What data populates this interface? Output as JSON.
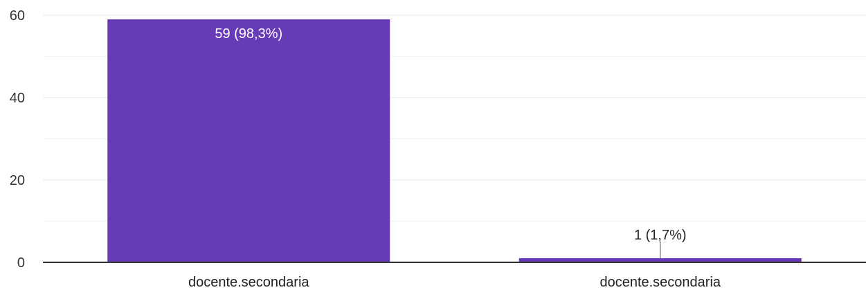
{
  "chart_data": {
    "type": "bar",
    "categories": [
      "docente.secondaria",
      "docente.secondaria"
    ],
    "values": [
      59,
      1
    ],
    "data_labels": [
      "59 (98,3%)",
      "1 (1,7%)"
    ],
    "ylim": [
      0,
      60
    ],
    "yticks": [
      0,
      20,
      40,
      60
    ],
    "grid": true,
    "minor_grid": true,
    "legend": "none",
    "bar_color": "#673AB7",
    "grid_color": "#E8E8E8",
    "axis_color": "#333333"
  }
}
